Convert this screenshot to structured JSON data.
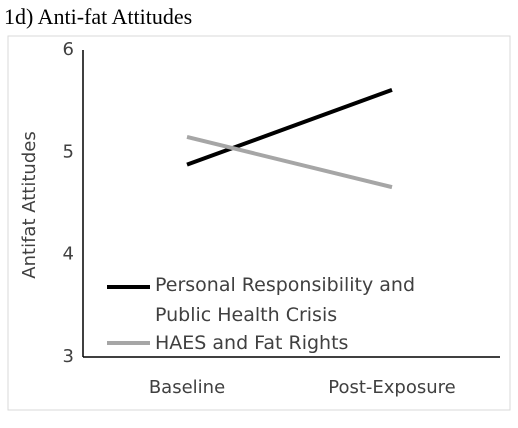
{
  "chart_data": {
    "type": "line",
    "title": "1d) Anti-fat Attitudes",
    "y_label": "Antifat Attitudes",
    "categories": [
      "Baseline",
      "Post-Exposure"
    ],
    "series": [
      {
        "name": "Personal Responsibility and Public Health Crisis",
        "color": "#000000",
        "values": [
          4.88,
          5.61
        ]
      },
      {
        "name": "HAES and Fat Rights",
        "color": "#a6a6a6",
        "values": [
          5.15,
          4.66
        ]
      }
    ],
    "ylim": [
      3,
      6
    ],
    "yticks": [
      3,
      4,
      5,
      6
    ]
  }
}
